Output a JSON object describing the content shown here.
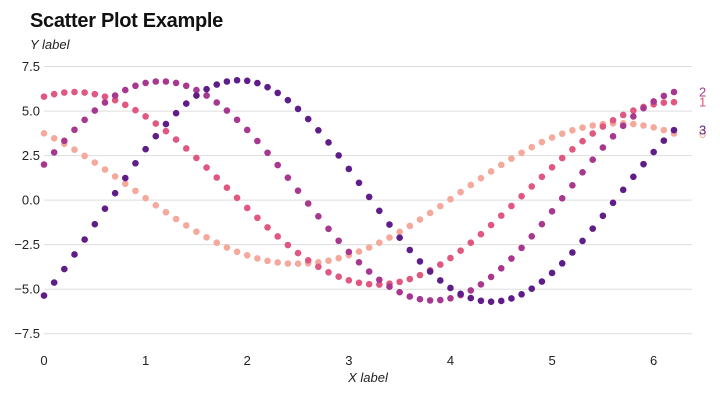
{
  "chart_data": {
    "type": "scatter",
    "title": "Scatter Plot Example",
    "ylabel": "Y label",
    "xlabel": "X label",
    "xlim": [
      0,
      6.2
    ],
    "ylim": [
      -9.2,
      10
    ],
    "x_ticks": [
      0,
      1,
      2,
      3,
      4,
      5,
      6
    ],
    "x_tick_labels": [
      "0",
      "1",
      "2",
      "3",
      "4",
      "5",
      "6"
    ],
    "y_ticks": [
      7.5,
      5.0,
      2.5,
      0.0,
      -2.5,
      -5.0,
      -7.5
    ],
    "y_tick_labels": [
      "7.5",
      "5.0",
      "2.5",
      "0.0",
      "−2.5",
      "−5.0",
      "−7.5"
    ],
    "grid": "horizontal",
    "legend": "end-of-series labels",
    "x": [
      0.0,
      0.1,
      0.2,
      0.3,
      0.4,
      0.5,
      0.6,
      0.7,
      0.8,
      0.9,
      1.0,
      1.1,
      1.2,
      1.3,
      1.4,
      1.5,
      1.6,
      1.7,
      1.8,
      1.9,
      2.0,
      2.1,
      2.2,
      2.3,
      2.4,
      2.5,
      2.6,
      2.7,
      2.8,
      2.9,
      3.0,
      3.1,
      3.2,
      3.3,
      3.4,
      3.5,
      3.6,
      3.7,
      3.8,
      3.9,
      4.0,
      4.1,
      4.2,
      4.3,
      4.4,
      4.5,
      4.6,
      4.7,
      4.8,
      4.9,
      5.0,
      5.1,
      5.2,
      5.3,
      5.4,
      5.5,
      5.6,
      5.7,
      5.8,
      5.9,
      6.0,
      6.1,
      6.2
    ],
    "series": [
      {
        "name": "0",
        "color": "#f4a99c",
        "values": [
          3.75,
          3.47,
          3.16,
          2.83,
          2.48,
          2.11,
          1.72,
          1.33,
          0.92,
          0.52,
          0.11,
          -0.29,
          -0.68,
          -1.06,
          -1.42,
          -1.77,
          -2.09,
          -2.39,
          -2.66,
          -2.9,
          -3.1,
          -3.27,
          -3.41,
          -3.5,
          -3.56,
          -3.57,
          -3.55,
          -3.49,
          -3.4,
          -3.26,
          -3.09,
          -2.89,
          -2.66,
          -2.39,
          -2.1,
          -1.78,
          -1.45,
          -1.09,
          -0.72,
          -0.34,
          0.05,
          0.45,
          0.85,
          1.23,
          1.61,
          1.98,
          2.33,
          2.66,
          2.97,
          3.26,
          3.51,
          3.73,
          3.92,
          4.07,
          4.19,
          4.27,
          4.31,
          4.31,
          4.27,
          4.19,
          4.08,
          3.93,
          3.74
        ]
      },
      {
        "name": "1",
        "color": "#e0577f",
        "values": [
          5.81,
          5.95,
          6.04,
          6.07,
          6.04,
          5.95,
          5.81,
          5.61,
          5.35,
          5.05,
          4.7,
          4.3,
          3.87,
          3.4,
          2.9,
          2.37,
          1.83,
          1.27,
          0.7,
          0.13,
          -0.44,
          -0.99,
          -1.53,
          -2.04,
          -2.52,
          -2.97,
          -3.38,
          -3.74,
          -4.05,
          -4.3,
          -4.5,
          -4.64,
          -4.72,
          -4.74,
          -4.69,
          -4.59,
          -4.43,
          -4.21,
          -3.94,
          -3.62,
          -3.25,
          -2.84,
          -2.39,
          -1.91,
          -1.4,
          -0.87,
          -0.33,
          0.22,
          0.77,
          1.31,
          1.84,
          2.36,
          2.85,
          3.31,
          3.74,
          4.13,
          4.48,
          4.78,
          5.03,
          5.23,
          5.38,
          5.47,
          5.5
        ]
      },
      {
        "name": "2",
        "color": "#a8388f",
        "values": [
          2.0,
          2.68,
          3.33,
          3.95,
          4.51,
          5.03,
          5.48,
          5.87,
          6.18,
          6.42,
          6.58,
          6.66,
          6.66,
          6.58,
          6.42,
          6.18,
          5.87,
          5.48,
          5.03,
          4.51,
          3.94,
          3.32,
          2.66,
          1.97,
          1.26,
          0.53,
          -0.19,
          -0.91,
          -1.61,
          -2.28,
          -2.91,
          -3.49,
          -4.01,
          -4.47,
          -4.86,
          -5.17,
          -5.41,
          -5.56,
          -5.63,
          -5.61,
          -5.51,
          -5.33,
          -5.07,
          -4.73,
          -4.31,
          -3.83,
          -3.28,
          -2.68,
          -2.03,
          -1.35,
          -0.63,
          0.1,
          0.83,
          1.56,
          2.27,
          2.95,
          3.58,
          4.17,
          4.7,
          5.16,
          5.54,
          5.85,
          6.07
        ]
      },
      {
        "name": "3",
        "color": "#5f1d8a",
        "values": [
          -5.36,
          -4.63,
          -3.87,
          -3.05,
          -2.21,
          -1.35,
          -0.48,
          0.39,
          1.24,
          2.07,
          2.86,
          3.59,
          4.27,
          4.88,
          5.42,
          5.87,
          6.23,
          6.49,
          6.66,
          6.73,
          6.7,
          6.57,
          6.34,
          6.02,
          5.61,
          5.12,
          4.55,
          3.92,
          3.24,
          2.51,
          1.75,
          0.97,
          0.18,
          -0.6,
          -1.37,
          -2.11,
          -2.8,
          -3.44,
          -4.01,
          -4.51,
          -4.93,
          -5.26,
          -5.5,
          -5.65,
          -5.7,
          -5.66,
          -5.52,
          -5.29,
          -4.97,
          -4.57,
          -4.09,
          -3.55,
          -2.94,
          -2.29,
          -1.6,
          -0.88,
          -0.15,
          0.58,
          1.31,
          2.02,
          2.7,
          3.34,
          3.93
        ]
      }
    ]
  }
}
